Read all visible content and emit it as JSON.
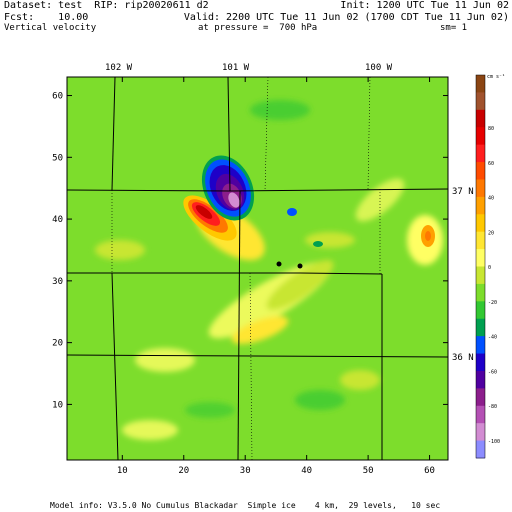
{
  "header": {
    "line1_left": "Dataset: test  RIP: rip20020611 d2",
    "line1_right": "Init: 1200 UTC Tue 11 Jun 02",
    "line2_left": "Fcst:    10.00",
    "line2_right": "Valid: 2200 UTC Tue 11 Jun 02 (1700 CDT Tue 11 Jun 02)",
    "line3_left": "Vertical velocity",
    "line3_mid": "at pressure =  700 hPa",
    "line3_right": "sm= 1"
  },
  "footer": {
    "model_info": "Model info: V3.5.0 No Cumulus Blackadar  Simple ice    4 km,  29 levels,   10 sec"
  },
  "map": {
    "x_ticks": [
      "10",
      "20",
      "30",
      "40",
      "50",
      "60"
    ],
    "y_ticks": [
      "10",
      "20",
      "30",
      "40",
      "50",
      "60"
    ],
    "lon_labels": [
      "102 W",
      "101 W",
      "100 W"
    ],
    "lat_labels": [
      "37 N",
      "36 N"
    ],
    "background_color": "#7ddd2c"
  },
  "colorbar": {
    "units": "cm s⁻¹",
    "labels": [
      "80",
      "60",
      "40",
      "20",
      "0",
      "-20",
      "-40",
      "-60",
      "-80",
      "-100"
    ],
    "colors": [
      "#8b4513",
      "#a0522d",
      "#c80000",
      "#e60000",
      "#ff1e1e",
      "#ff4b00",
      "#ff7800",
      "#ffa000",
      "#ffc800",
      "#ffe632",
      "#ffff64",
      "#c8e632",
      "#7ddd2c",
      "#32c832",
      "#00a050",
      "#0050ff",
      "#1e00c8",
      "#5000a0",
      "#8c1e8c",
      "#b450b4",
      "#d28cd2",
      "#8c8cff"
    ]
  }
}
